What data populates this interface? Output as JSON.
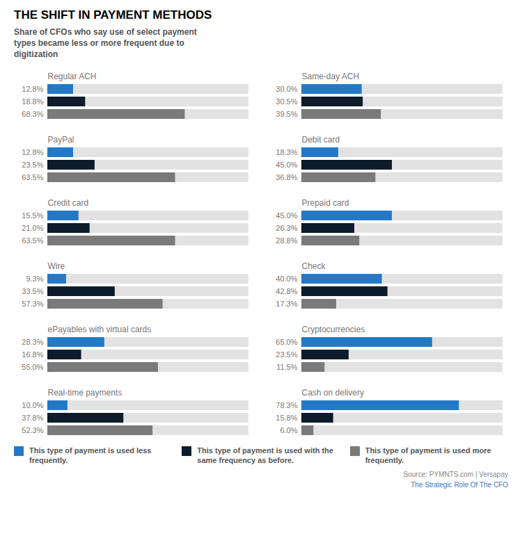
{
  "chart_data": {
    "type": "bar",
    "orientation": "horizontal",
    "title": "THE SHIFT IN PAYMENT METHODS",
    "subtitle": "Share of CFOs who say use of select payment\ntypes became less or more frequent due to\ndigitization",
    "categories": [
      "Regular ACH",
      "PayPal",
      "Credit card",
      "Wire",
      "ePayables with virtual cards",
      "Real-time payments",
      "Same-day ACH",
      "Debit card",
      "Prepaid card",
      "Check",
      "Cryptocurrencies",
      "Cash on delivery"
    ],
    "series": [
      {
        "name": "This type of payment is used less\nfrequently.",
        "color": "#2479C7",
        "values": [
          12.8,
          12.8,
          15.5,
          9.3,
          28.3,
          10.0,
          30.0,
          18.3,
          45.0,
          40.0,
          65.0,
          78.3
        ],
        "value_labels": [
          "12.8%",
          "12.8%",
          "15.5%",
          "9.3%",
          "28.3%",
          "10.0%",
          "30.0%",
          "18.3%",
          "45.0%",
          "40.0%",
          "65.0%",
          "78.3%"
        ]
      },
      {
        "name": "This type of payment is used with the\nsame frequency as before.",
        "color": "#0D1B2A",
        "values": [
          18.8,
          23.5,
          21.0,
          33.5,
          16.8,
          37.8,
          30.5,
          45.0,
          26.3,
          42.8,
          23.5,
          15.8
        ],
        "value_labels": [
          "18.8%",
          "23.5%",
          "21.0%",
          "33.5%",
          "16.8%",
          "37.8%",
          "30.5%",
          "45.0%",
          "26.3%",
          "42.8%",
          "23.5%",
          "15.8%"
        ]
      },
      {
        "name": "This type of payment is used more\nfrequently.",
        "color": "#7A7A7A",
        "values": [
          68.3,
          63.5,
          63.5,
          57.3,
          55.0,
          52.3,
          39.5,
          36.8,
          28.8,
          17.3,
          11.5,
          6.0
        ],
        "value_labels": [
          "68.3%",
          "63.5%",
          "63.5%",
          "57.3%",
          "55.0%",
          "52.3%",
          "39.5%",
          "36.8%",
          "28.8%",
          "17.3%",
          "11.5%",
          "6.0%"
        ]
      }
    ],
    "xlim": [
      0,
      100
    ],
    "tick_labels": false,
    "data_labels": true,
    "grid": false,
    "annotations": [
      "Source: PYMNTS.com  |  Versapay",
      "The Strategic Role Of The CFO"
    ]
  }
}
